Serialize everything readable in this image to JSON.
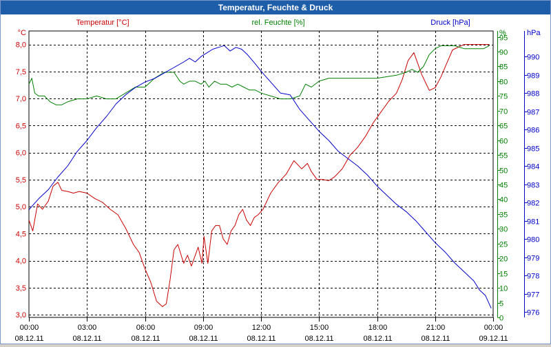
{
  "window": {
    "title": "Temperatur, Feuchte & Druck"
  },
  "chart_data": {
    "type": "line",
    "title": "Temperatur, Feuchte & Druck",
    "x_ticks": [
      {
        "time": "00:00",
        "date": "08.12.11"
      },
      {
        "time": "03:00",
        "date": "08.12.11"
      },
      {
        "time": "06:00",
        "date": "08.12.11"
      },
      {
        "time": "09:00",
        "date": "08.12.11"
      },
      {
        "time": "12:00",
        "date": "08.12.11"
      },
      {
        "time": "15:00",
        "date": "08.12.11"
      },
      {
        "time": "18:00",
        "date": "08.12.11"
      },
      {
        "time": "21:00",
        "date": "08.12.11"
      },
      {
        "time": "00:00",
        "date": "09.12.11"
      }
    ],
    "xlim_hours": [
      0,
      24
    ],
    "grid": true,
    "axes": {
      "temperature": {
        "label": "Temperatur [°C]",
        "unit": "°C",
        "ylim": [
          2.95,
          8.25
        ],
        "ticks": [
          "3,0",
          "3,5",
          "4,0",
          "4,5",
          "5,0",
          "5,5",
          "6,0",
          "6,5",
          "7,0",
          "7,5",
          "8,0"
        ],
        "color": "#cc0000"
      },
      "humidity": {
        "label": "rel. Feuchte [%]",
        "unit": "%",
        "ylim": [
          0,
          97
        ],
        "ticks": [
          "0",
          "5",
          "10",
          "15",
          "20",
          "25",
          "30",
          "35",
          "40",
          "45",
          "50",
          "55",
          "60",
          "65",
          "70",
          "75",
          "80",
          "85",
          "90",
          "95"
        ],
        "color": "#008000"
      },
      "pressure": {
        "label": "Druck [hPa]",
        "unit": "hPa",
        "ylim": [
          975.7,
          991.4
        ],
        "ticks": [
          "976",
          "977",
          "978",
          "979",
          "980",
          "981",
          "982",
          "983",
          "984",
          "985",
          "986",
          "987",
          "988",
          "989",
          "990"
        ],
        "color": "#0000cc"
      }
    },
    "series": [
      {
        "name": "Temperatur",
        "axis": "temperature",
        "color": "#cc0000",
        "x": [
          0,
          0.2,
          0.45,
          0.7,
          1.0,
          1.25,
          1.5,
          1.7,
          2.0,
          2.3,
          2.6,
          3.0,
          3.4,
          3.8,
          4.2,
          4.6,
          5.0,
          5.4,
          5.7,
          6.0,
          6.3,
          6.6,
          6.9,
          7.1,
          7.3,
          7.5,
          7.7,
          8.0,
          8.2,
          8.4,
          8.55,
          8.75,
          8.95,
          9.05,
          9.25,
          9.45,
          9.65,
          9.85,
          10.05,
          10.25,
          10.45,
          10.65,
          10.85,
          11.05,
          11.25,
          11.45,
          11.65,
          11.85,
          12.1,
          12.5,
          12.9,
          13.3,
          13.7,
          14.1,
          14.4,
          14.6,
          14.9,
          15.2,
          15.5,
          15.8,
          16.2,
          16.6,
          17.0,
          17.4,
          17.8,
          18.2,
          18.6,
          19.0,
          19.3,
          19.6,
          19.9,
          20.1,
          20.3,
          20.5,
          20.7,
          21.0,
          21.3,
          21.6,
          21.9,
          22.2,
          22.5,
          22.8,
          23.1,
          23.4,
          23.6,
          23.8
        ],
        "values": [
          4.75,
          4.55,
          5.05,
          4.95,
          5.1,
          5.38,
          5.45,
          5.3,
          5.28,
          5.25,
          5.28,
          5.25,
          5.15,
          5.08,
          4.95,
          4.85,
          4.6,
          4.3,
          4.15,
          3.85,
          3.6,
          3.25,
          3.15,
          3.2,
          3.65,
          4.2,
          4.3,
          3.95,
          4.1,
          3.9,
          4.05,
          4.25,
          3.95,
          4.45,
          3.95,
          4.55,
          4.65,
          4.65,
          4.4,
          4.3,
          4.55,
          4.65,
          4.85,
          4.95,
          4.75,
          4.65,
          4.8,
          4.85,
          4.95,
          5.25,
          5.45,
          5.6,
          5.85,
          5.7,
          5.8,
          5.65,
          5.5,
          5.5,
          5.48,
          5.55,
          5.7,
          5.95,
          6.1,
          6.3,
          6.55,
          6.75,
          6.95,
          7.1,
          7.35,
          7.7,
          7.85,
          7.65,
          7.45,
          7.3,
          7.15,
          7.2,
          7.4,
          7.65,
          7.9,
          7.95,
          8.0,
          8.0,
          8.0,
          8.0,
          8.0,
          8.0
        ]
      },
      {
        "name": "rel. Feuchte",
        "axis": "humidity",
        "color": "#008000",
        "x": [
          0,
          0.15,
          0.3,
          0.5,
          0.8,
          1.1,
          1.4,
          1.7,
          2.0,
          2.5,
          3.0,
          3.5,
          4.0,
          4.5,
          5.0,
          5.5,
          6.0,
          6.5,
          7.0,
          7.5,
          7.8,
          8.0,
          8.3,
          8.6,
          8.9,
          9.1,
          9.3,
          9.6,
          9.9,
          10.2,
          10.5,
          10.8,
          11.1,
          11.4,
          11.7,
          12.0,
          12.5,
          13.0,
          13.5,
          14.0,
          14.3,
          14.6,
          15.0,
          15.5,
          16.0,
          17.0,
          18.0,
          19.0,
          19.5,
          19.8,
          20.1,
          20.4,
          20.7,
          21.0,
          21.3,
          21.6,
          22.0,
          22.5,
          23.0,
          23.5,
          23.8
        ],
        "values": [
          79,
          81,
          76,
          75,
          75,
          73,
          72,
          72,
          73,
          74,
          74,
          75,
          74,
          74,
          76,
          78,
          78,
          81,
          83,
          83,
          80,
          79,
          80,
          80,
          79,
          80,
          78,
          80,
          79,
          79,
          78,
          79,
          78,
          77,
          77,
          76,
          75,
          74,
          74,
          75,
          79,
          78,
          80,
          81,
          81,
          81,
          81,
          82,
          83,
          84,
          83,
          85,
          89,
          91,
          92,
          92,
          92,
          91,
          91,
          91,
          92
        ]
      },
      {
        "name": "Druck",
        "axis": "pressure",
        "color": "#0000cc",
        "x": [
          0,
          0.25,
          0.5,
          1.0,
          1.5,
          2.0,
          2.5,
          3.0,
          3.5,
          4.0,
          4.5,
          5.0,
          5.5,
          6.0,
          6.5,
          7.0,
          7.5,
          8.0,
          8.3,
          8.6,
          8.9,
          9.2,
          9.5,
          9.8,
          10.1,
          10.4,
          10.7,
          11.0,
          11.3,
          11.7,
          12.0,
          12.5,
          13.0,
          13.5,
          14.0,
          14.5,
          15.0,
          15.5,
          16.0,
          16.5,
          17.0,
          17.5,
          18.0,
          18.5,
          19.0,
          19.5,
          20.0,
          20.5,
          21.0,
          21.5,
          22.0,
          22.5,
          23.0,
          23.3,
          23.6,
          23.9
        ],
        "values": [
          981.6,
          981.9,
          982.2,
          982.7,
          983.4,
          984.0,
          984.8,
          985.4,
          986.1,
          986.7,
          987.4,
          987.9,
          988.3,
          988.6,
          988.8,
          989.1,
          989.4,
          989.7,
          989.9,
          989.7,
          990.0,
          990.2,
          990.4,
          990.5,
          990.6,
          990.3,
          990.5,
          990.4,
          990.1,
          989.6,
          989.2,
          988.6,
          988.0,
          987.9,
          987.1,
          986.5,
          985.9,
          985.4,
          984.8,
          984.4,
          984.0,
          983.5,
          982.9,
          982.4,
          981.9,
          981.5,
          981.0,
          980.4,
          979.8,
          979.3,
          978.7,
          978.2,
          977.7,
          977.2,
          976.9,
          976.2
        ]
      }
    ]
  }
}
